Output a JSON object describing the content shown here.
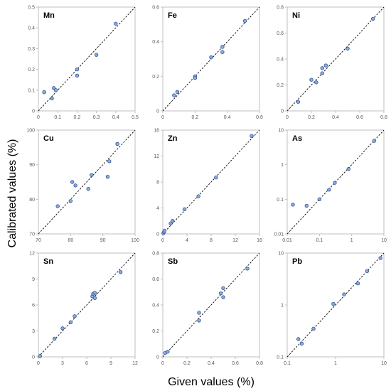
{
  "figure": {
    "xlabel": "Given values (%)",
    "ylabel": "Calibrated values (%)"
  },
  "chart_data": [
    {
      "type": "scatter",
      "title": "Mn",
      "scale": "linear",
      "xlim": [
        0,
        0.5
      ],
      "ylim": [
        0,
        0.5
      ],
      "xticks": [
        "0",
        "0.1",
        "0.2",
        "0.3",
        "0.4",
        "0.5"
      ],
      "yticks": [
        "0",
        "0.1",
        "0.2",
        "0.3",
        "0.4",
        "0.5"
      ],
      "series": [
        {
          "x": [
            0.03,
            0.07,
            0.08,
            0.09,
            0.2,
            0.2,
            0.3,
            0.4
          ],
          "y": [
            0.09,
            0.06,
            0.11,
            0.1,
            0.2,
            0.17,
            0.27,
            0.42
          ]
        }
      ],
      "reference_line": "y = x",
      "grid": false
    },
    {
      "type": "scatter",
      "title": "Fe",
      "scale": "linear",
      "xlim": [
        0,
        0.6
      ],
      "ylim": [
        0,
        0.6
      ],
      "xticks": [
        "0",
        "0.2",
        "0.4",
        "0.6"
      ],
      "yticks": [
        "0",
        "0.2",
        "0.4",
        "0.6"
      ],
      "series": [
        {
          "x": [
            0.07,
            0.09,
            0.2,
            0.2,
            0.3,
            0.37,
            0.37,
            0.51
          ],
          "y": [
            0.09,
            0.11,
            0.2,
            0.19,
            0.31,
            0.37,
            0.34,
            0.52
          ]
        }
      ],
      "reference_line": "y = x",
      "grid": false
    },
    {
      "type": "scatter",
      "title": "Ni",
      "scale": "linear",
      "xlim": [
        0,
        0.8
      ],
      "ylim": [
        0,
        0.8
      ],
      "xticks": [
        "0",
        "0.2",
        "0.4",
        "0.6",
        "0.8"
      ],
      "yticks": [
        "0",
        "0.2",
        "0.4",
        "0.6",
        "0.8"
      ],
      "series": [
        {
          "x": [
            0.09,
            0.2,
            0.24,
            0.29,
            0.29,
            0.32,
            0.5,
            0.71
          ],
          "y": [
            0.07,
            0.24,
            0.22,
            0.29,
            0.33,
            0.35,
            0.48,
            0.71
          ]
        }
      ],
      "reference_line": "y = x",
      "grid": false
    },
    {
      "type": "scatter",
      "title": "Cu",
      "scale": "linear",
      "xlim": [
        70,
        100
      ],
      "ylim": [
        70,
        100
      ],
      "xticks": [
        "70",
        "80",
        "90",
        "100"
      ],
      "yticks": [
        "70",
        "80",
        "90",
        "100"
      ],
      "series": [
        {
          "x": [
            76,
            80,
            80.5,
            81.5,
            85.5,
            86.5,
            91.5,
            92,
            94.5
          ],
          "y": [
            78,
            79.5,
            85,
            84,
            83,
            87,
            86.5,
            91,
            96
          ]
        }
      ],
      "reference_line": "y = x",
      "grid": false
    },
    {
      "type": "scatter",
      "title": "Zn",
      "scale": "linear",
      "xlim": [
        0,
        16
      ],
      "ylim": [
        0,
        16
      ],
      "xticks": [
        "0",
        "4",
        "8",
        "12",
        "16"
      ],
      "yticks": [
        "0",
        "4",
        "8",
        "12",
        "16"
      ],
      "series": [
        {
          "x": [
            0.1,
            0.2,
            0.3,
            1.3,
            1.6,
            3.6,
            5.9,
            8.8,
            14.7
          ],
          "y": [
            0.1,
            0.3,
            0.5,
            1.6,
            2.0,
            3.8,
            5.8,
            8.7,
            15.1
          ]
        }
      ],
      "reference_line": "y = x",
      "grid": false
    },
    {
      "type": "scatter",
      "title": "As",
      "scale": "log",
      "xlim": [
        0.01,
        10
      ],
      "ylim": [
        0.01,
        10
      ],
      "xticks": [
        "0.01",
        "0.1",
        "1",
        "10"
      ],
      "yticks": [
        "0.01",
        "0.1",
        "1",
        "10"
      ],
      "series": [
        {
          "x": [
            0.015,
            0.04,
            0.1,
            0.2,
            0.3,
            0.8,
            5
          ],
          "y": [
            0.07,
            0.065,
            0.1,
            0.19,
            0.3,
            0.75,
            4.9
          ]
        }
      ],
      "reference_line": "y = x",
      "grid": false
    },
    {
      "type": "scatter",
      "title": "Sn",
      "scale": "linear",
      "xlim": [
        0,
        12
      ],
      "ylim": [
        0,
        12
      ],
      "xticks": [
        "0",
        "3",
        "6",
        "9",
        "12"
      ],
      "yticks": [
        "0",
        "3",
        "6",
        "9",
        "12"
      ],
      "series": [
        {
          "x": [
            0.2,
            2,
            3,
            4,
            4.5,
            6.7,
            6.8,
            7,
            7,
            10.2
          ],
          "y": [
            0.1,
            2.1,
            3.3,
            4,
            4.7,
            7,
            7.3,
            6.8,
            7.4,
            9.8
          ]
        }
      ],
      "reference_line": "y = x",
      "grid": false
    },
    {
      "type": "scatter",
      "title": "Sb",
      "scale": "linear",
      "xlim": [
        0,
        0.8
      ],
      "ylim": [
        0,
        0.8
      ],
      "xticks": [
        "0",
        "0.2",
        "0.4",
        "0.6",
        "0.8"
      ],
      "yticks": [
        "0",
        "0.2",
        "0.4",
        "0.6",
        "0.8"
      ],
      "series": [
        {
          "x": [
            0.02,
            0.04,
            0.3,
            0.3,
            0.48,
            0.5,
            0.5,
            0.7
          ],
          "y": [
            0.03,
            0.04,
            0.34,
            0.28,
            0.49,
            0.53,
            0.46,
            0.68
          ]
        }
      ],
      "reference_line": "y = x",
      "grid": false
    },
    {
      "type": "scatter",
      "title": "Pb",
      "scale": "log",
      "xlim": [
        0.1,
        10
      ],
      "ylim": [
        0.1,
        10
      ],
      "xticks": [
        "0.1",
        "1",
        "10"
      ],
      "yticks": [
        "0.1",
        "1",
        "10"
      ],
      "series": [
        {
          "x": [
            0.17,
            0.2,
            0.35,
            0.9,
            1.5,
            2.9,
            4.5,
            8.5
          ],
          "y": [
            0.22,
            0.18,
            0.35,
            1.05,
            1.6,
            2.6,
            4.5,
            8
          ]
        }
      ],
      "reference_line": "y = x",
      "grid": false
    }
  ]
}
